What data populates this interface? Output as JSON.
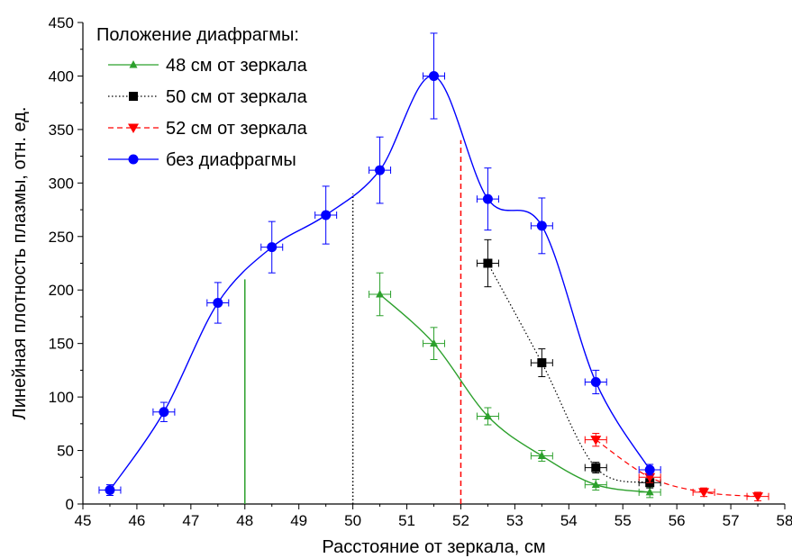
{
  "chart_data": {
    "type": "scatter",
    "title": "",
    "xlabel": "Расстояние от зеркала, см",
    "ylabel": "Линейная плотность плазмы, отн. ед.",
    "xlim": [
      45,
      58
    ],
    "ylim": [
      0,
      450
    ],
    "x_ticks": [
      "45",
      "46",
      "47",
      "48",
      "49",
      "50",
      "51",
      "52",
      "53",
      "54",
      "55",
      "56",
      "57",
      "58"
    ],
    "y_ticks": [
      "0",
      "50",
      "100",
      "150",
      "200",
      "250",
      "300",
      "350",
      "400",
      "450"
    ],
    "grid": false,
    "legend_title": "Положение диафрагмы:",
    "legend_position": "top-left",
    "series": [
      {
        "name": "48 см от зеркала",
        "color": "#2ca02c",
        "marker": "triangle-up",
        "line": "solid",
        "x": [
          50.5,
          51.5,
          52.5,
          53.5,
          54.5,
          55.5
        ],
        "y": [
          196,
          150,
          82,
          45,
          18,
          11
        ],
        "y_err": [
          20,
          15,
          8,
          5,
          5,
          5
        ]
      },
      {
        "name": "50 см от зеркала",
        "color": "#000000",
        "marker": "square",
        "line": "dotted",
        "x": [
          52.5,
          53.5,
          54.5,
          55.5
        ],
        "y": [
          225,
          132,
          34,
          20
        ],
        "y_err": [
          22,
          13,
          5,
          5
        ]
      },
      {
        "name": "52 см от зеркала",
        "color": "#ff0000",
        "marker": "triangle-down",
        "line": "dashed",
        "x": [
          54.5,
          55.5,
          56.5,
          57.5
        ],
        "y": [
          60,
          25,
          11,
          7
        ],
        "y_err": [
          6,
          5,
          4,
          4
        ]
      },
      {
        "name": "без диафрагмы",
        "color": "#0000ff",
        "marker": "circle",
        "line": "solid",
        "x": [
          45.5,
          46.5,
          47.5,
          48.5,
          49.5,
          50.5,
          51.5,
          52.5,
          53.5,
          54.5,
          55.5
        ],
        "y": [
          13,
          86,
          188,
          240,
          270,
          312,
          400,
          285,
          260,
          114,
          32
        ],
        "y_err": [
          5,
          9,
          19,
          24,
          27,
          31,
          40,
          29,
          26,
          11,
          5
        ],
        "x_err": 0.2
      }
    ],
    "diaphragm_lines": [
      {
        "x": 48,
        "y_top": 210,
        "color": "#2ca02c",
        "style": "solid"
      },
      {
        "x": 50,
        "y_top": 290,
        "color": "#000000",
        "style": "dotted"
      },
      {
        "x": 52,
        "y_top": 340,
        "color": "#ff0000",
        "style": "dashed"
      }
    ]
  }
}
